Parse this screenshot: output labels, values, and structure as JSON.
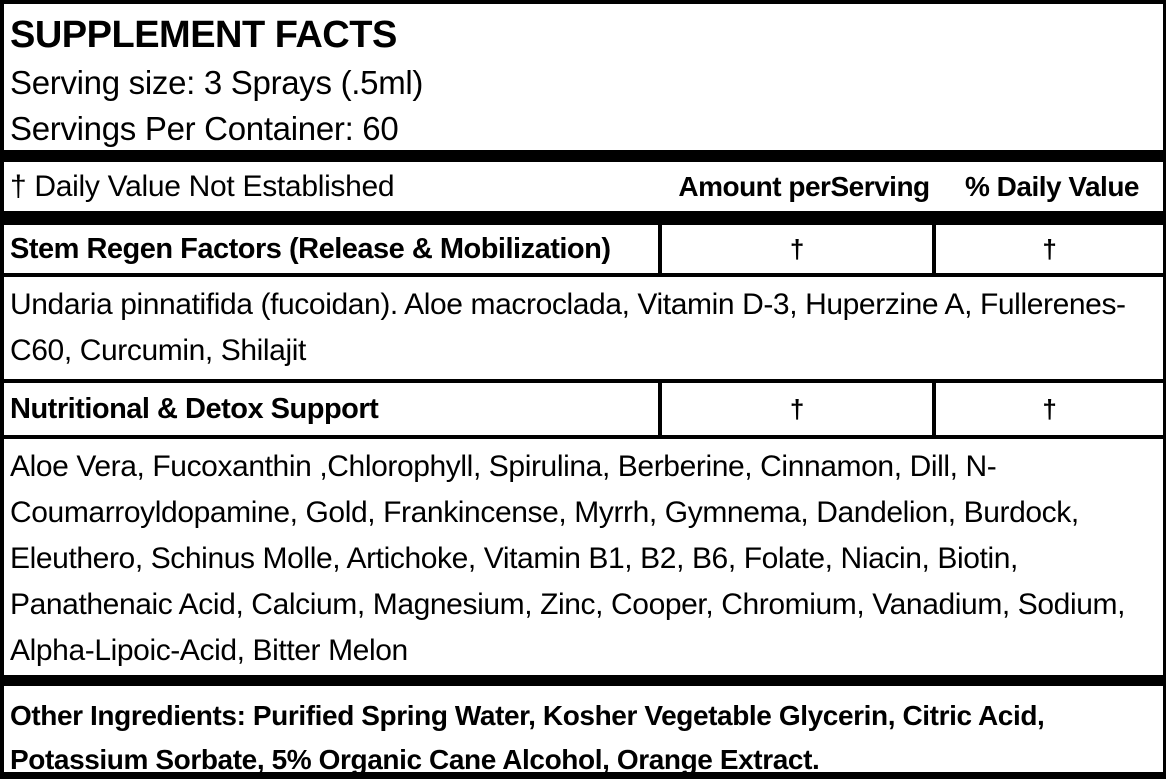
{
  "label": {
    "title": "SUPPLEMENT FACTS",
    "serving_size": "Serving size: 3 Sprays (.5ml)",
    "servings_per_container": "Servings Per Container: 60",
    "footnote": "† Daily Value Not Established",
    "columns": {
      "amount": "Amount perServing",
      "daily_value": "% Daily Value"
    },
    "rows": [
      {
        "name": "Stem Regen Factors (Release & Mobilization)",
        "amount": "†",
        "daily_value": "†",
        "description": "Undaria pinnatifida (fucoidan). Aloe macroclada, Vitamin D-3, Huperzine A, Fullerenes-C60, Curcumin, Shilajit"
      },
      {
        "name": "Nutritional & Detox Support",
        "amount": "†",
        "daily_value": "†",
        "description": "Aloe Vera, Fucoxanthin ,Chlorophyll, Spirulina, Berberine, Cinnamon, Dill, N-Coumarroyldopamine, Gold, Frankincense, Myrrh, Gymnema, Dandelion, Burdock, Eleuthero, Schinus Molle, Artichoke, Vitamin B1, B2, B6, Folate, Niacin, Biotin, Panathenaic Acid, Calcium, Magnesium, Zinc, Cooper, Chromium, Vanadium, Sodium, Alpha-Lipoic-Acid, Bitter Melon"
      }
    ],
    "other_ingredients": "Other Ingredients: Purified Spring Water, Kosher Vegetable Glycerin, Citric Acid, Potassium Sorbate, 5% Organic Cane Alcohol, Orange Extract.",
    "colors": {
      "ink": "#000000",
      "background": "#ffffff"
    }
  }
}
